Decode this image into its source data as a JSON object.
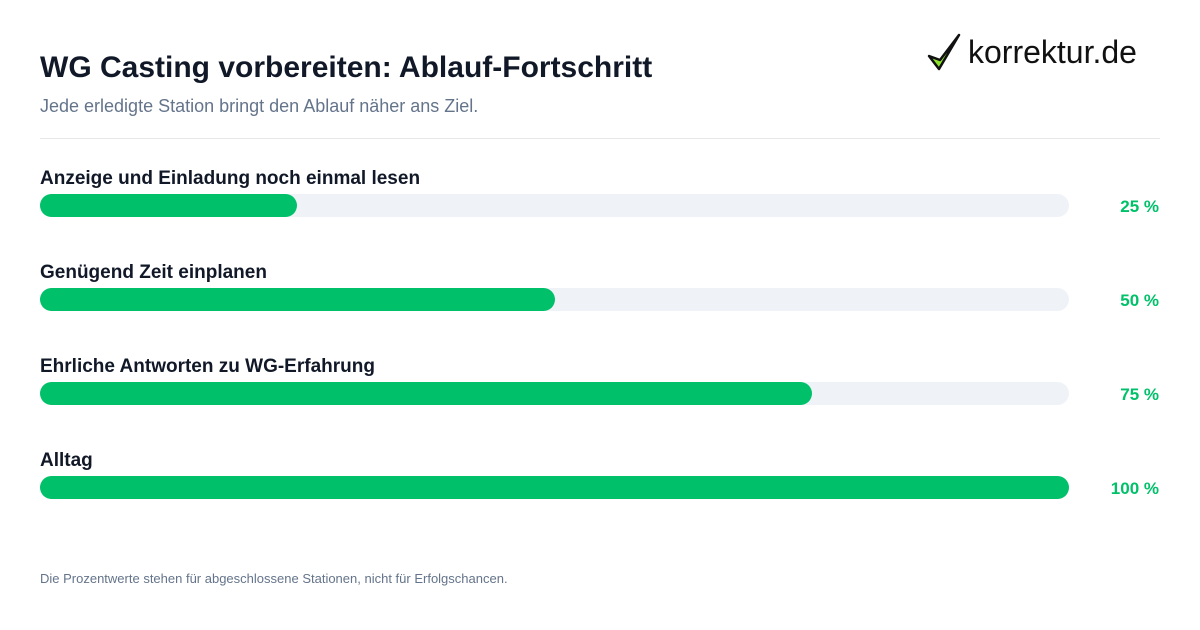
{
  "header": {
    "title": "WG Casting vorbereiten: Ablauf-Fortschritt",
    "subtitle": "Jede erledigte Station bringt den Ablauf näher ans Ziel.",
    "logo_text": "korrektur.de"
  },
  "chart_data": {
    "type": "bar",
    "orientation": "horizontal",
    "title": "WG Casting vorbereiten: Ablauf-Fortschritt",
    "subtitle": "Jede erledigte Station bringt den Ablauf näher ans Ziel.",
    "categories": [
      "Anzeige und Einladung noch einmal lesen",
      "Genügend Zeit einplanen",
      "Ehrliche Antworten zu WG-Erfahrung",
      "Alltag"
    ],
    "values": [
      25,
      50,
      75,
      100
    ],
    "value_labels": [
      "25 %",
      "50 %",
      "75 %",
      "100 %"
    ],
    "xlim": [
      0,
      100
    ],
    "unit": "%",
    "bar_color": "#00c16a",
    "track_color": "#eff3f8",
    "label_color": "#00c16a",
    "grid": false,
    "legend": "none"
  },
  "footer": {
    "note": "Die Prozentwerte stehen für abgeschlossene Stationen, nicht für Erfolgschancen."
  },
  "icons": {
    "logo": "checkmark-icon"
  },
  "colors": {
    "logo_check": "#8ee32f",
    "logo_outline": "#111111"
  }
}
